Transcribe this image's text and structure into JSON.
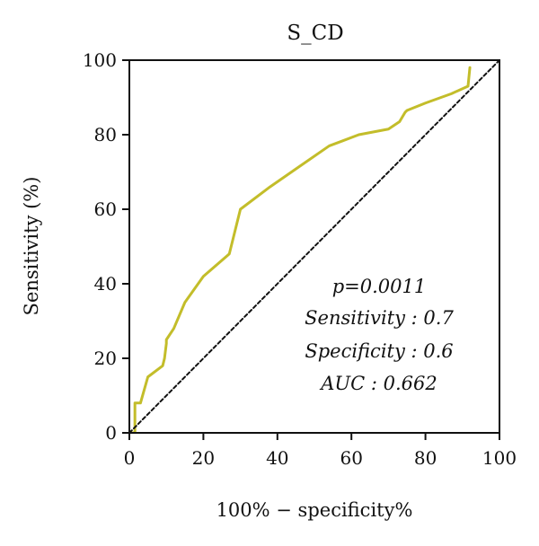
{
  "chart_data": {
    "type": "line",
    "title": "S_CD",
    "xlabel": "100% − specificity%",
    "ylabel": "Sensitivity (%)",
    "xlim": [
      0,
      100
    ],
    "ylim": [
      0,
      100
    ],
    "xticks": [
      0,
      20,
      40,
      60,
      80,
      100
    ],
    "yticks": [
      0,
      20,
      40,
      60,
      80,
      100
    ],
    "grid": false,
    "series": [
      {
        "color": "#c3bd2a",
        "style": "solid",
        "x": [
          0.5,
          1.5,
          1.5,
          3,
          5,
          9,
          9.5,
          10,
          10,
          12,
          15,
          20,
          27,
          30,
          38,
          46,
          54,
          62,
          70,
          73,
          74.5,
          75,
          80,
          87,
          91.5,
          92
        ],
        "y": [
          0,
          0,
          8,
          8,
          15,
          18,
          20,
          24,
          25,
          28,
          35,
          42,
          48,
          60,
          66,
          71.5,
          77,
          80,
          81.5,
          83.5,
          86,
          86.5,
          88.5,
          91,
          93,
          98
        ]
      },
      {
        "color": "#111111",
        "style": "dashed",
        "x": [
          0,
          100
        ],
        "y": [
          0,
          100
        ]
      }
    ],
    "annotations": [
      "p=0.0011",
      "Sensitivity : 0.7",
      "Specificity : 0.6",
      "AUC : 0.662"
    ]
  }
}
